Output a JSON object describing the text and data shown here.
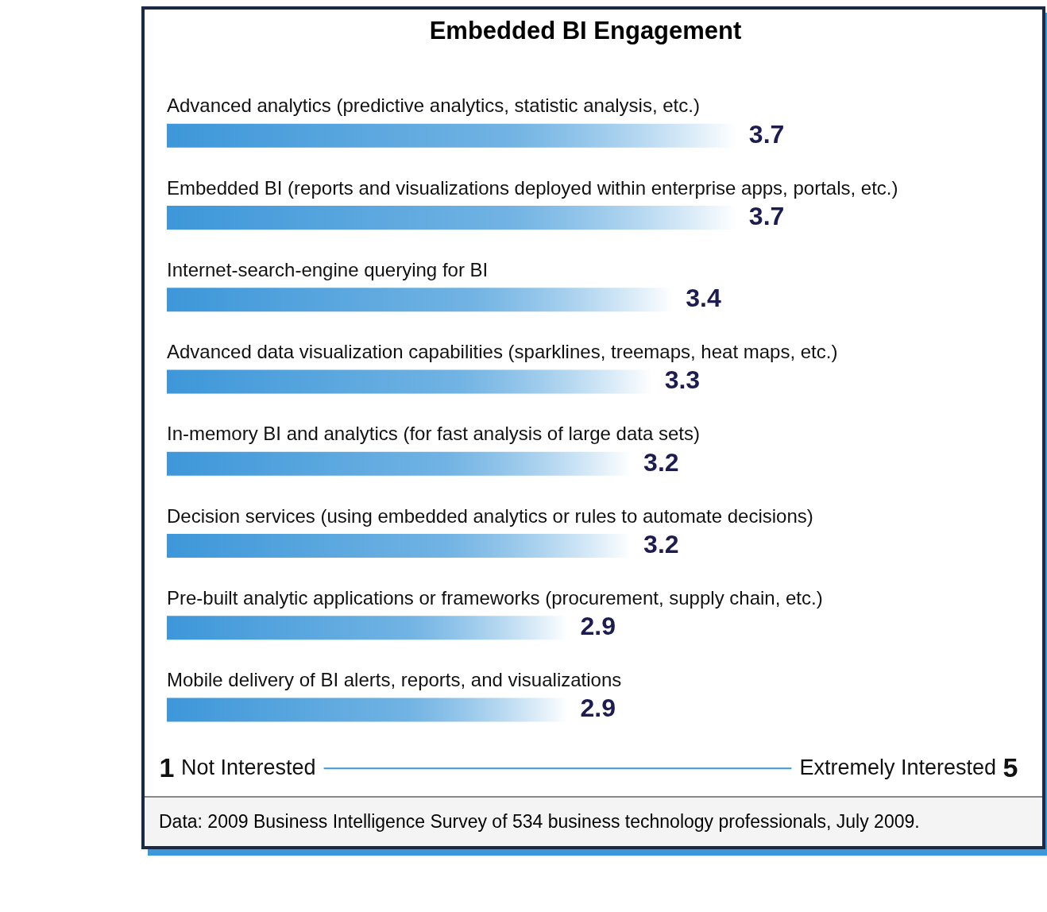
{
  "chart_data": {
    "type": "bar",
    "orientation": "horizontal",
    "title": "Embedded BI Engagement",
    "categories": [
      "Advanced analytics (predictive analytics, statistic analysis, etc.)",
      "Embedded BI (reports and visualizations deployed within enterprise apps, portals, etc.)",
      "Internet-search-engine querying for BI",
      "Advanced data visualization capabilities (sparklines, treemaps, heat maps, etc.)",
      "In-memory BI and analytics (for fast analysis of large data sets)",
      "Decision services (using embedded analytics or rules to automate decisions)",
      "Pre-built analytic applications or frameworks (procurement, supply chain, etc.)",
      "Mobile delivery of BI alerts, reports, and visualizations"
    ],
    "values": [
      3.7,
      3.7,
      3.4,
      3.3,
      3.2,
      3.2,
      2.9,
      2.9
    ],
    "color": "#3d97d9",
    "xlim": [
      1,
      5
    ],
    "xticks": [
      1,
      5
    ],
    "data_labels": true,
    "grid": false,
    "legend": false,
    "annotations": [
      "Not Interested",
      "Extremely Interested",
      "Data: 2009 Business Intelligence Survey of 534 business technology professionals, July 2009."
    ]
  }
}
